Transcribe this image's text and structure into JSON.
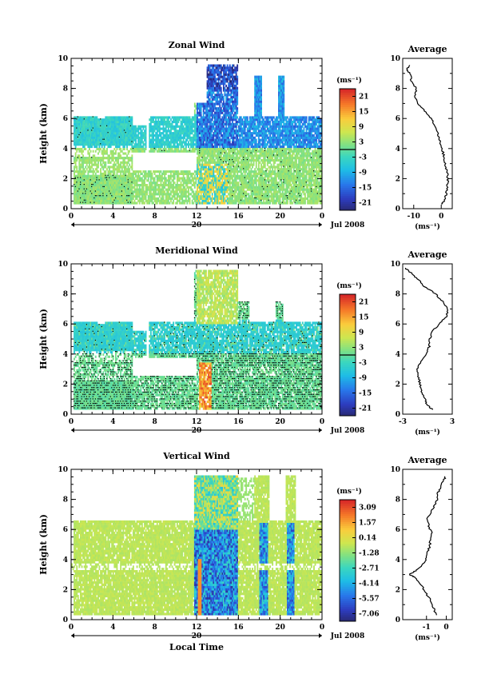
{
  "figure": {
    "month_label": "Jul 2008",
    "date_tick": "20",
    "xlabel_bottom": "Local Time"
  },
  "chart_data": [
    {
      "type": "heatmap",
      "title": "Zonal Wind",
      "ylabel": "Height (km)",
      "x_ticks": [
        "0",
        "4",
        "8",
        "12",
        "16",
        "20",
        "0"
      ],
      "y_ticks": [
        "0",
        "2",
        "4",
        "6",
        "8",
        "10"
      ],
      "xlim": [
        0,
        24
      ],
      "ylim": [
        0,
        10
      ],
      "colorbar": {
        "unit": "(ms⁻¹)",
        "ticks": [
          "21",
          "15",
          "9",
          "3",
          "-3",
          "-9",
          "-15",
          "-21"
        ],
        "range": [
          -24,
          24
        ],
        "zero_line": 0
      },
      "average": {
        "title": "Average",
        "xlabel": "(ms⁻¹)",
        "x_ticks": [
          "-10",
          "0"
        ],
        "xlim": [
          -14,
          4
        ],
        "height": [
          0.3,
          0.5,
          1.0,
          1.5,
          2.0,
          2.5,
          3.0,
          3.5,
          4.0,
          4.5,
          5.0,
          5.5,
          6.0,
          6.5,
          7.0,
          7.5,
          8.0,
          8.5,
          9.0,
          9.3,
          9.6
        ],
        "value": [
          0.0,
          1.2,
          1.8,
          2.2,
          2.4,
          2.0,
          1.5,
          1.0,
          0.2,
          -0.4,
          -1.2,
          -2.2,
          -3.8,
          -6.0,
          -8.8,
          -9.5,
          -9.0,
          -10.8,
          -11.5,
          -12.5,
          -11.0
        ]
      }
    },
    {
      "type": "heatmap",
      "title": "Meridional Wind",
      "ylabel": "Height (km)",
      "x_ticks": [
        "0",
        "4",
        "8",
        "12",
        "16",
        "20",
        "0"
      ],
      "y_ticks": [
        "0",
        "2",
        "4",
        "6",
        "8",
        "10"
      ],
      "xlim": [
        0,
        24
      ],
      "ylim": [
        0,
        10
      ],
      "colorbar": {
        "unit": "(ms⁻¹)",
        "ticks": [
          "21",
          "15",
          "9",
          "3",
          "-3",
          "-9",
          "-15",
          "-21"
        ],
        "range": [
          -24,
          24
        ],
        "zero_line": 0
      },
      "average": {
        "title": "Average",
        "xlabel": "(ms⁻¹)",
        "x_ticks": [
          "-3",
          "3"
        ],
        "xlim": [
          -3,
          3
        ],
        "height": [
          0.3,
          0.6,
          1.0,
          1.5,
          2.0,
          2.5,
          3.0,
          3.5,
          4.0,
          4.5,
          5.0,
          5.5,
          6.0,
          6.5,
          7.0,
          7.5,
          8.0,
          8.5,
          9.0,
          9.4,
          9.8
        ],
        "value": [
          0.6,
          0.0,
          -0.3,
          -0.7,
          -0.9,
          -1.1,
          -1.3,
          -0.8,
          -0.2,
          0.2,
          0.3,
          0.6,
          1.4,
          2.3,
          2.4,
          1.8,
          1.0,
          -0.4,
          -1.2,
          -2.0,
          -2.8
        ]
      }
    },
    {
      "type": "heatmap",
      "title": "Vertical Wind",
      "ylabel": "Height (km)",
      "xlabel": "Local Time",
      "x_ticks": [
        "0",
        "4",
        "8",
        "12",
        "16",
        "20",
        "0"
      ],
      "y_ticks": [
        "0",
        "2",
        "4",
        "6",
        "8",
        "10"
      ],
      "xlim": [
        0,
        24
      ],
      "ylim": [
        0,
        10
      ],
      "colorbar": {
        "unit": "(ms⁻¹)",
        "ticks": [
          "3.09",
          "1.57",
          "0.14",
          "-1.28",
          "-2.71",
          "-4.14",
          "-5.57",
          "-7.06"
        ],
        "range": [
          -7.8,
          3.8
        ],
        "zero_line": null
      },
      "average": {
        "title": "Average",
        "xlabel": "(ms⁻¹)",
        "x_ticks": [
          "-1",
          "0"
        ],
        "xlim": [
          -2.2,
          0.3
        ],
        "height": [
          0.3,
          0.8,
          1.3,
          1.8,
          2.3,
          2.8,
          3.0,
          3.3,
          3.8,
          4.3,
          4.8,
          5.3,
          5.8,
          6.3,
          6.8,
          7.3,
          7.8,
          8.3,
          8.8,
          9.2,
          9.6
        ],
        "value": [
          -0.5,
          -0.65,
          -0.8,
          -1.05,
          -1.25,
          -1.6,
          -1.85,
          -1.5,
          -1.1,
          -1.0,
          -0.85,
          -0.8,
          -0.75,
          -0.9,
          -0.95,
          -0.7,
          -0.5,
          -0.45,
          -0.3,
          -0.15,
          0.0
        ]
      }
    }
  ]
}
